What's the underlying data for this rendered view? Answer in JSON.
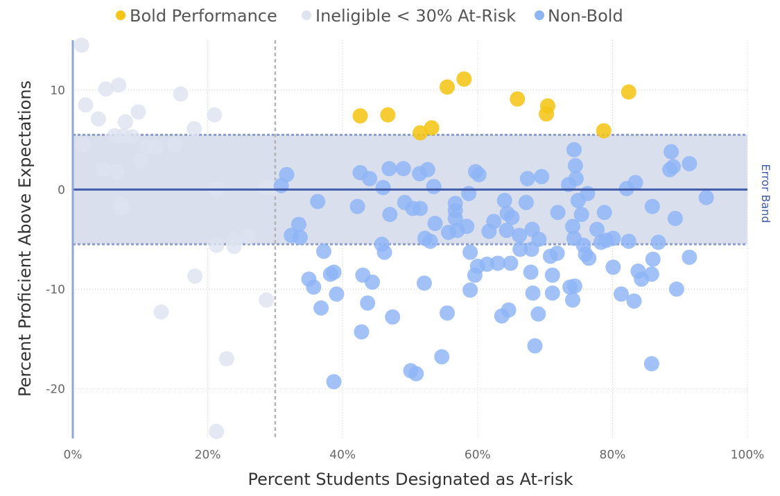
{
  "chart_data": {
    "type": "scatter",
    "title": "",
    "xlabel": "Percent Students Designated as At-risk",
    "ylabel": "Percent Proficient Above Expectations",
    "xlim": [
      0,
      1
    ],
    "ylim": [
      -25,
      15
    ],
    "x_ticks": [
      0,
      0.2,
      0.4,
      0.6,
      0.8,
      1.0
    ],
    "x_tick_labels": [
      "0%",
      "20%",
      "40%",
      "60%",
      "80%",
      "100%"
    ],
    "y_ticks": [
      -20,
      -10,
      0,
      10
    ],
    "y_tick_labels": [
      "-20",
      "-10",
      "0",
      "10"
    ],
    "grid": "dotted",
    "legend_position": "top",
    "threshold_x": 0.3,
    "error_band": {
      "label": "Error Band",
      "lower": -5.5,
      "upper": 5.5
    },
    "colors": {
      "bold": "#F5C518",
      "ineligible": "#DDE3EF",
      "nonbold": "#8DB4F5",
      "band_fill": "#D5DBEA",
      "band_edge": "#8C9DCC",
      "zero_line": "#3E5AA8",
      "axis_line": "#8FA6D9",
      "threshold_line": "#B5B5B5"
    },
    "series": [
      {
        "name": "Bold Performance",
        "key": "bold",
        "points": [
          [
            0.426,
            7.4
          ],
          [
            0.467,
            7.5
          ],
          [
            0.515,
            5.7
          ],
          [
            0.532,
            6.2
          ],
          [
            0.555,
            10.3
          ],
          [
            0.58,
            11.1
          ],
          [
            0.659,
            9.1
          ],
          [
            0.702,
            7.6
          ],
          [
            0.704,
            8.4
          ],
          [
            0.787,
            5.9
          ],
          [
            0.824,
            9.8
          ]
        ]
      },
      {
        "name": "Ineligible < 30% At-Risk",
        "key": "ineligible",
        "points": [
          [
            0.013,
            14.5
          ],
          [
            0.015,
            4.5
          ],
          [
            0.019,
            8.5
          ],
          [
            0.038,
            7.1
          ],
          [
            0.045,
            2.0
          ],
          [
            0.049,
            10.1
          ],
          [
            0.062,
            5.4
          ],
          [
            0.066,
            1.8
          ],
          [
            0.068,
            10.5
          ],
          [
            0.071,
            -1.4
          ],
          [
            0.073,
            -1.9
          ],
          [
            0.075,
            5.4
          ],
          [
            0.078,
            6.8
          ],
          [
            0.088,
            5.3
          ],
          [
            0.097,
            7.8
          ],
          [
            0.101,
            2.9
          ],
          [
            0.11,
            4.3
          ],
          [
            0.123,
            4.3
          ],
          [
            0.131,
            -12.3
          ],
          [
            0.151,
            4.5
          ],
          [
            0.16,
            9.6
          ],
          [
            0.18,
            6.1
          ],
          [
            0.181,
            -8.7
          ],
          [
            0.21,
            7.5
          ],
          [
            0.213,
            0.0
          ],
          [
            0.213,
            -5.6
          ],
          [
            0.213,
            -24.3
          ],
          [
            0.228,
            -17.0
          ],
          [
            0.239,
            -5.0
          ],
          [
            0.239,
            -5.7
          ],
          [
            0.26,
            -4.7
          ],
          [
            0.285,
            0.2
          ],
          [
            0.287,
            -11.1
          ],
          [
            0.292,
            0.2
          ],
          [
            0.298,
            0.2
          ]
        ]
      },
      {
        "name": "Non-Bold",
        "key": "nonbold",
        "points": [
          [
            0.309,
            0.4
          ],
          [
            0.317,
            1.5
          ],
          [
            0.324,
            -4.6
          ],
          [
            0.335,
            -3.5
          ],
          [
            0.337,
            -4.8
          ],
          [
            0.35,
            -9.0
          ],
          [
            0.357,
            -9.8
          ],
          [
            0.363,
            -1.2
          ],
          [
            0.368,
            -11.9
          ],
          [
            0.372,
            -6.2
          ],
          [
            0.382,
            -8.5
          ],
          [
            0.387,
            -8.3
          ],
          [
            0.387,
            -19.3
          ],
          [
            0.391,
            -10.5
          ],
          [
            0.422,
            -1.7
          ],
          [
            0.426,
            1.7
          ],
          [
            0.428,
            -14.3
          ],
          [
            0.43,
            -8.6
          ],
          [
            0.437,
            -11.4
          ],
          [
            0.44,
            1.1
          ],
          [
            0.444,
            -9.3
          ],
          [
            0.458,
            -5.5
          ],
          [
            0.46,
            0.2
          ],
          [
            0.462,
            -6.3
          ],
          [
            0.469,
            2.1
          ],
          [
            0.47,
            -2.5
          ],
          [
            0.474,
            -12.8
          ],
          [
            0.49,
            2.1
          ],
          [
            0.492,
            -1.3
          ],
          [
            0.501,
            -18.2
          ],
          [
            0.504,
            -1.9
          ],
          [
            0.509,
            -18.5
          ],
          [
            0.514,
            1.6
          ],
          [
            0.515,
            -1.9
          ],
          [
            0.521,
            -9.4
          ],
          [
            0.522,
            -4.9
          ],
          [
            0.526,
            2.0
          ],
          [
            0.53,
            -5.2
          ],
          [
            0.535,
            0.3
          ],
          [
            0.537,
            -3.4
          ],
          [
            0.547,
            -16.8
          ],
          [
            0.555,
            -12.4
          ],
          [
            0.557,
            -4.3
          ],
          [
            0.567,
            -2.1
          ],
          [
            0.567,
            -1.4
          ],
          [
            0.567,
            -2.9
          ],
          [
            0.57,
            -4.1
          ],
          [
            0.584,
            -3.7
          ],
          [
            0.587,
            -0.4
          ],
          [
            0.589,
            -6.3
          ],
          [
            0.589,
            -10.1
          ],
          [
            0.596,
            -8.6
          ],
          [
            0.597,
            1.8
          ],
          [
            0.6,
            -7.7
          ],
          [
            0.602,
            1.5
          ],
          [
            0.614,
            -7.5
          ],
          [
            0.617,
            -4.2
          ],
          [
            0.624,
            -3.2
          ],
          [
            0.63,
            -7.4
          ],
          [
            0.636,
            -12.7
          ],
          [
            0.64,
            -1.1
          ],
          [
            0.643,
            -4.1
          ],
          [
            0.644,
            -2.4
          ],
          [
            0.646,
            -12.1
          ],
          [
            0.649,
            -7.4
          ],
          [
            0.651,
            -2.8
          ],
          [
            0.662,
            -4.6
          ],
          [
            0.663,
            -6.0
          ],
          [
            0.672,
            -1.3
          ],
          [
            0.674,
            1.1
          ],
          [
            0.679,
            -8.3
          ],
          [
            0.68,
            -6.0
          ],
          [
            0.681,
            -4.0
          ],
          [
            0.682,
            -10.4
          ],
          [
            0.685,
            -15.7
          ],
          [
            0.69,
            -12.5
          ],
          [
            0.691,
            -5.0
          ],
          [
            0.695,
            1.3
          ],
          [
            0.708,
            -6.7
          ],
          [
            0.711,
            -8.6
          ],
          [
            0.711,
            -10.4
          ],
          [
            0.718,
            -6.4
          ],
          [
            0.719,
            -2.3
          ],
          [
            0.735,
            0.5
          ],
          [
            0.737,
            -9.8
          ],
          [
            0.741,
            -11.1
          ],
          [
            0.741,
            -3.7
          ],
          [
            0.743,
            -4.9
          ],
          [
            0.743,
            4.0
          ],
          [
            0.744,
            -9.7
          ],
          [
            0.745,
            2.4
          ],
          [
            0.746,
            1.1
          ],
          [
            0.749,
            -1.1
          ],
          [
            0.754,
            -2.5
          ],
          [
            0.757,
            -5.6
          ],
          [
            0.76,
            -6.5
          ],
          [
            0.763,
            -0.4
          ],
          [
            0.765,
            -6.9
          ],
          [
            0.777,
            -4.0
          ],
          [
            0.783,
            -5.3
          ],
          [
            0.788,
            -2.3
          ],
          [
            0.791,
            -5.1
          ],
          [
            0.801,
            -7.8
          ],
          [
            0.801,
            -4.9
          ],
          [
            0.813,
            -10.5
          ],
          [
            0.821,
            0.1
          ],
          [
            0.824,
            -5.2
          ],
          [
            0.832,
            -11.2
          ],
          [
            0.834,
            0.7
          ],
          [
            0.838,
            -8.2
          ],
          [
            0.843,
            -9.0
          ],
          [
            0.858,
            -17.5
          ],
          [
            0.858,
            -8.5
          ],
          [
            0.859,
            -1.7
          ],
          [
            0.86,
            -7.0
          ],
          [
            0.868,
            -5.3
          ],
          [
            0.885,
            2.0
          ],
          [
            0.887,
            3.8
          ],
          [
            0.89,
            2.3
          ],
          [
            0.893,
            -2.9
          ],
          [
            0.895,
            -10.0
          ],
          [
            0.914,
            -6.8
          ],
          [
            0.914,
            2.6
          ],
          [
            0.939,
            -0.8
          ]
        ]
      }
    ]
  }
}
